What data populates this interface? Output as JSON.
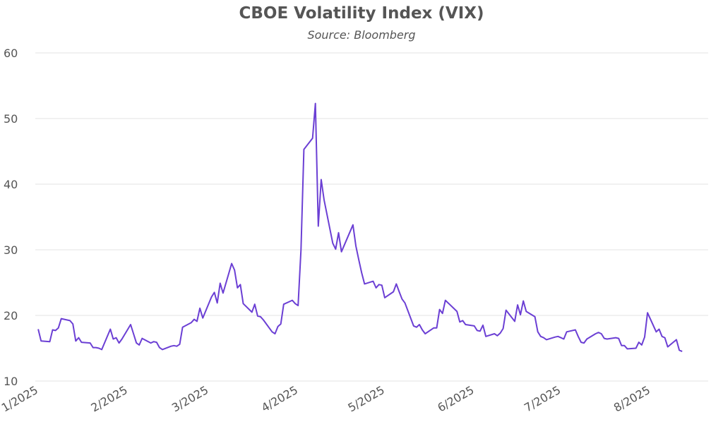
{
  "chart_data": {
    "type": "line",
    "title": "CBOE Volatility Index (VIX)",
    "subtitle": "Source: Bloomberg",
    "xlabel": "",
    "ylabel": "",
    "ylim": [
      10,
      60
    ],
    "yticks": [
      "10",
      "20",
      "30",
      "40",
      "50",
      "60"
    ],
    "xticks": [
      {
        "label": "1/2025",
        "x": "2025-01-01"
      },
      {
        "label": "2/2025",
        "x": "2025-02-01"
      },
      {
        "label": "3/2025",
        "x": "2025-03-01"
      },
      {
        "label": "4/2025",
        "x": "2025-04-01"
      },
      {
        "label": "5/2025",
        "x": "2025-05-01"
      },
      {
        "label": "6/2025",
        "x": "2025-06-01"
      },
      {
        "label": "7/2025",
        "x": "2025-07-01"
      },
      {
        "label": "8/2025",
        "x": "2025-08-01"
      }
    ],
    "xlim": [
      "2025-01-01",
      "2025-08-22"
    ],
    "grid": true,
    "series": [
      {
        "color": "#6b3fd4",
        "points": [
          [
            "2025-01-02",
            17.9
          ],
          [
            "2025-01-03",
            16.1
          ],
          [
            "2025-01-06",
            16.0
          ],
          [
            "2025-01-07",
            17.8
          ],
          [
            "2025-01-08",
            17.7
          ],
          [
            "2025-01-09",
            18.1
          ],
          [
            "2025-01-10",
            19.5
          ],
          [
            "2025-01-13",
            19.2
          ],
          [
            "2025-01-14",
            18.7
          ],
          [
            "2025-01-15",
            16.1
          ],
          [
            "2025-01-16",
            16.6
          ],
          [
            "2025-01-17",
            15.9
          ],
          [
            "2025-01-20",
            15.8
          ],
          [
            "2025-01-21",
            15.1
          ],
          [
            "2025-01-22",
            15.1
          ],
          [
            "2025-01-23",
            15.0
          ],
          [
            "2025-01-24",
            14.8
          ],
          [
            "2025-01-27",
            17.9
          ],
          [
            "2025-01-28",
            16.4
          ],
          [
            "2025-01-29",
            16.6
          ],
          [
            "2025-01-30",
            15.8
          ],
          [
            "2025-01-31",
            16.4
          ],
          [
            "2025-02-03",
            18.6
          ],
          [
            "2025-02-04",
            17.2
          ],
          [
            "2025-02-05",
            15.8
          ],
          [
            "2025-02-06",
            15.5
          ],
          [
            "2025-02-07",
            16.5
          ],
          [
            "2025-02-10",
            15.8
          ],
          [
            "2025-02-11",
            16.0
          ],
          [
            "2025-02-12",
            15.9
          ],
          [
            "2025-02-13",
            15.1
          ],
          [
            "2025-02-14",
            14.8
          ],
          [
            "2025-02-17",
            15.3
          ],
          [
            "2025-02-18",
            15.4
          ],
          [
            "2025-02-19",
            15.3
          ],
          [
            "2025-02-20",
            15.6
          ],
          [
            "2025-02-21",
            18.2
          ],
          [
            "2025-02-24",
            18.9
          ],
          [
            "2025-02-25",
            19.4
          ],
          [
            "2025-02-26",
            19.1
          ],
          [
            "2025-02-27",
            21.1
          ],
          [
            "2025-02-28",
            19.6
          ],
          [
            "2025-03-03",
            22.8
          ],
          [
            "2025-03-04",
            23.5
          ],
          [
            "2025-03-05",
            21.9
          ],
          [
            "2025-03-06",
            24.9
          ],
          [
            "2025-03-07",
            23.4
          ],
          [
            "2025-03-10",
            27.9
          ],
          [
            "2025-03-11",
            26.9
          ],
          [
            "2025-03-12",
            24.2
          ],
          [
            "2025-03-13",
            24.7
          ],
          [
            "2025-03-14",
            21.8
          ],
          [
            "2025-03-17",
            20.5
          ],
          [
            "2025-03-18",
            21.7
          ],
          [
            "2025-03-19",
            19.9
          ],
          [
            "2025-03-20",
            19.8
          ],
          [
            "2025-03-21",
            19.3
          ],
          [
            "2025-03-24",
            17.5
          ],
          [
            "2025-03-25",
            17.2
          ],
          [
            "2025-03-26",
            18.3
          ],
          [
            "2025-03-27",
            18.7
          ],
          [
            "2025-03-28",
            21.7
          ],
          [
            "2025-03-31",
            22.3
          ],
          [
            "2025-04-01",
            21.8
          ],
          [
            "2025-04-02",
            21.5
          ],
          [
            "2025-04-03",
            30.0
          ],
          [
            "2025-04-04",
            45.3
          ],
          [
            "2025-04-07",
            47.0
          ],
          [
            "2025-04-08",
            52.3
          ],
          [
            "2025-04-09",
            33.6
          ],
          [
            "2025-04-10",
            40.7
          ],
          [
            "2025-04-11",
            37.6
          ],
          [
            "2025-04-14",
            31.0
          ],
          [
            "2025-04-15",
            30.1
          ],
          [
            "2025-04-16",
            32.6
          ],
          [
            "2025-04-17",
            29.7
          ],
          [
            "2025-04-21",
            33.8
          ],
          [
            "2025-04-22",
            30.6
          ],
          [
            "2025-04-23",
            28.5
          ],
          [
            "2025-04-24",
            26.5
          ],
          [
            "2025-04-25",
            24.8
          ],
          [
            "2025-04-28",
            25.2
          ],
          [
            "2025-04-29",
            24.2
          ],
          [
            "2025-04-30",
            24.7
          ],
          [
            "2025-05-01",
            24.6
          ],
          [
            "2025-05-02",
            22.7
          ],
          [
            "2025-05-05",
            23.6
          ],
          [
            "2025-05-06",
            24.8
          ],
          [
            "2025-05-07",
            23.6
          ],
          [
            "2025-05-08",
            22.5
          ],
          [
            "2025-05-09",
            21.9
          ],
          [
            "2025-05-12",
            18.4
          ],
          [
            "2025-05-13",
            18.2
          ],
          [
            "2025-05-14",
            18.6
          ],
          [
            "2025-05-15",
            17.8
          ],
          [
            "2025-05-16",
            17.2
          ],
          [
            "2025-05-19",
            18.1
          ],
          [
            "2025-05-20",
            18.1
          ],
          [
            "2025-05-21",
            20.9
          ],
          [
            "2025-05-22",
            20.3
          ],
          [
            "2025-05-23",
            22.3
          ],
          [
            "2025-05-27",
            20.6
          ],
          [
            "2025-05-28",
            19.0
          ],
          [
            "2025-05-29",
            19.2
          ],
          [
            "2025-05-30",
            18.6
          ],
          [
            "2025-06-02",
            18.4
          ],
          [
            "2025-06-03",
            17.7
          ],
          [
            "2025-06-04",
            17.6
          ],
          [
            "2025-06-05",
            18.5
          ],
          [
            "2025-06-06",
            16.8
          ],
          [
            "2025-06-09",
            17.2
          ],
          [
            "2025-06-10",
            16.9
          ],
          [
            "2025-06-11",
            17.3
          ],
          [
            "2025-06-12",
            18.0
          ],
          [
            "2025-06-13",
            20.8
          ],
          [
            "2025-06-16",
            19.1
          ],
          [
            "2025-06-17",
            21.6
          ],
          [
            "2025-06-18",
            20.1
          ],
          [
            "2025-06-19",
            22.2
          ],
          [
            "2025-06-20",
            20.6
          ],
          [
            "2025-06-23",
            19.8
          ],
          [
            "2025-06-24",
            17.5
          ],
          [
            "2025-06-25",
            16.8
          ],
          [
            "2025-06-26",
            16.6
          ],
          [
            "2025-06-27",
            16.3
          ],
          [
            "2025-06-30",
            16.7
          ],
          [
            "2025-07-01",
            16.8
          ],
          [
            "2025-07-02",
            16.6
          ],
          [
            "2025-07-03",
            16.4
          ],
          [
            "2025-07-04",
            17.5
          ],
          [
            "2025-07-07",
            17.8
          ],
          [
            "2025-07-08",
            16.8
          ],
          [
            "2025-07-09",
            15.9
          ],
          [
            "2025-07-10",
            15.8
          ],
          [
            "2025-07-11",
            16.4
          ],
          [
            "2025-07-14",
            17.2
          ],
          [
            "2025-07-15",
            17.4
          ],
          [
            "2025-07-16",
            17.2
          ],
          [
            "2025-07-17",
            16.5
          ],
          [
            "2025-07-18",
            16.4
          ],
          [
            "2025-07-21",
            16.6
          ],
          [
            "2025-07-22",
            16.5
          ],
          [
            "2025-07-23",
            15.4
          ],
          [
            "2025-07-24",
            15.4
          ],
          [
            "2025-07-25",
            14.9
          ],
          [
            "2025-07-28",
            15.0
          ],
          [
            "2025-07-29",
            15.9
          ],
          [
            "2025-07-30",
            15.5
          ],
          [
            "2025-07-31",
            16.7
          ],
          [
            "2025-08-01",
            20.4
          ],
          [
            "2025-08-04",
            17.5
          ],
          [
            "2025-08-05",
            17.9
          ],
          [
            "2025-08-06",
            16.8
          ],
          [
            "2025-08-07",
            16.6
          ],
          [
            "2025-08-08",
            15.2
          ],
          [
            "2025-08-11",
            16.3
          ],
          [
            "2025-08-12",
            14.7
          ],
          [
            "2025-08-13",
            14.5
          ]
        ]
      }
    ]
  }
}
